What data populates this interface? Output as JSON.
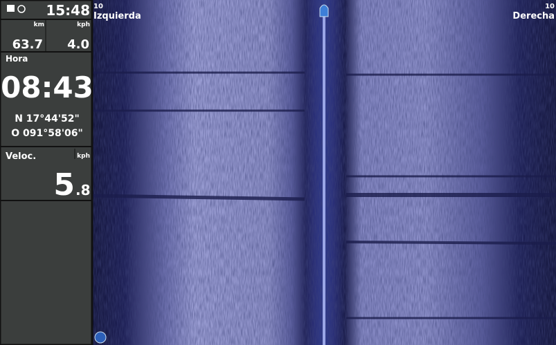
{
  "status": {
    "time": "15:48"
  },
  "trip": {
    "distance_unit": "km",
    "speed_unit": "kph",
    "distance": "63.7",
    "speed": "4.0"
  },
  "clock": {
    "label": "Hora",
    "time": "08:43"
  },
  "position": {
    "latitude": "N 17°44'52\"",
    "longitude": "O 091°58'06\""
  },
  "velocity": {
    "label": "Veloc.",
    "unit": "kph",
    "whole": "5",
    "fraction": ".8"
  },
  "sonar": {
    "left_range": "10",
    "left_label": "Izquierda",
    "right_range": "10",
    "right_label": "Derecha"
  }
}
